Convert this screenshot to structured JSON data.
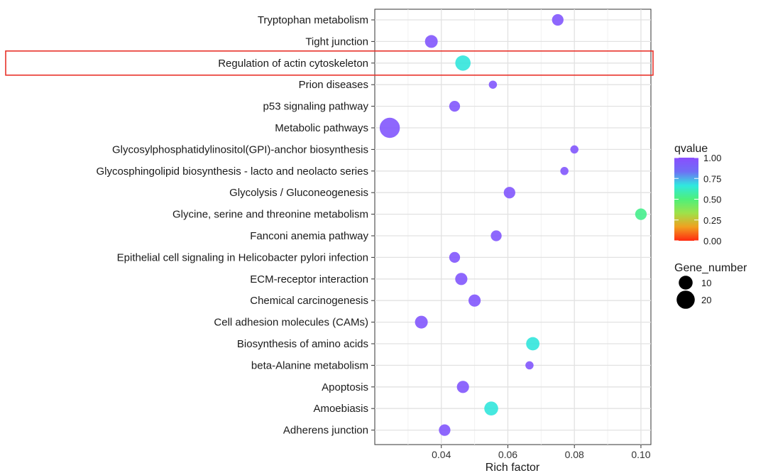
{
  "chart_data": {
    "type": "scatter",
    "xlabel": "Rich factor",
    "xlim": [
      0.02,
      0.103
    ],
    "x_ticks": [
      "0.04",
      "0.06",
      "0.08",
      "0.10"
    ],
    "x_tick_values": [
      0.04,
      0.06,
      0.08,
      0.1
    ],
    "grid": true,
    "categories": [
      "Tryptophan metabolism",
      "Tight junction",
      "Regulation of actin cytoskeleton",
      "Prion diseases",
      "p53 signaling pathway",
      "Metabolic pathways",
      "Glycosylphosphatidylinositol(GPI)-anchor biosynthesis",
      "Glycosphingolipid biosynthesis - lacto and neolacto series",
      "Glycolysis / Gluconeogenesis",
      "Glycine, serine and threonine metabolism",
      "Fanconi anemia pathway",
      "Epithelial cell signaling in Helicobacter pylori infection",
      "ECM-receptor interaction",
      "Chemical carcinogenesis",
      "Cell adhesion molecules (CAMs)",
      "Biosynthesis of amino acids",
      "beta-Alanine metabolism",
      "Apoptosis",
      "Amoebiasis",
      "Adherens junction"
    ],
    "points": [
      {
        "rich_factor": 0.075,
        "qvalue": 0.95,
        "gene_number": 6
      },
      {
        "rich_factor": 0.037,
        "qvalue": 0.95,
        "gene_number": 8
      },
      {
        "rich_factor": 0.0465,
        "qvalue": 0.55,
        "gene_number": 13
      },
      {
        "rich_factor": 0.0555,
        "qvalue": 0.95,
        "gene_number": 2
      },
      {
        "rich_factor": 0.044,
        "qvalue": 0.95,
        "gene_number": 5
      },
      {
        "rich_factor": 0.0245,
        "qvalue": 0.95,
        "gene_number": 26
      },
      {
        "rich_factor": 0.08,
        "qvalue": 0.95,
        "gene_number": 2
      },
      {
        "rich_factor": 0.077,
        "qvalue": 0.95,
        "gene_number": 2
      },
      {
        "rich_factor": 0.0605,
        "qvalue": 0.95,
        "gene_number": 6
      },
      {
        "rich_factor": 0.1,
        "qvalue": 0.45,
        "gene_number": 6
      },
      {
        "rich_factor": 0.0565,
        "qvalue": 0.95,
        "gene_number": 5
      },
      {
        "rich_factor": 0.044,
        "qvalue": 0.95,
        "gene_number": 5
      },
      {
        "rich_factor": 0.046,
        "qvalue": 0.95,
        "gene_number": 7
      },
      {
        "rich_factor": 0.05,
        "qvalue": 0.95,
        "gene_number": 7
      },
      {
        "rich_factor": 0.034,
        "qvalue": 0.95,
        "gene_number": 8
      },
      {
        "rich_factor": 0.0675,
        "qvalue": 0.55,
        "gene_number": 9
      },
      {
        "rich_factor": 0.0665,
        "qvalue": 0.95,
        "gene_number": 2
      },
      {
        "rich_factor": 0.0465,
        "qvalue": 0.95,
        "gene_number": 7
      },
      {
        "rich_factor": 0.055,
        "qvalue": 0.55,
        "gene_number": 10
      },
      {
        "rich_factor": 0.041,
        "qvalue": 0.95,
        "gene_number": 6
      }
    ],
    "highlighted_category": "Regulation of actin cytoskeleton",
    "highlight_color": "#e8322a",
    "color_legend": {
      "title": "qvalue",
      "ticks": [
        "1.00",
        "0.75",
        "0.50",
        "0.25",
        "0.00"
      ],
      "tick_values": [
        1.0,
        0.75,
        0.5,
        0.25,
        0.0
      ],
      "colors": [
        "#8a4dff",
        "#6f6ef5",
        "#30e8e0",
        "#4ef07a",
        "#9ee24a",
        "#f0a020",
        "#ff2a10"
      ]
    },
    "size_legend": {
      "title": "Gene_number",
      "entries": [
        {
          "label": "10",
          "value": 10
        },
        {
          "label": "20",
          "value": 20
        }
      ]
    },
    "legend_position": "right"
  }
}
